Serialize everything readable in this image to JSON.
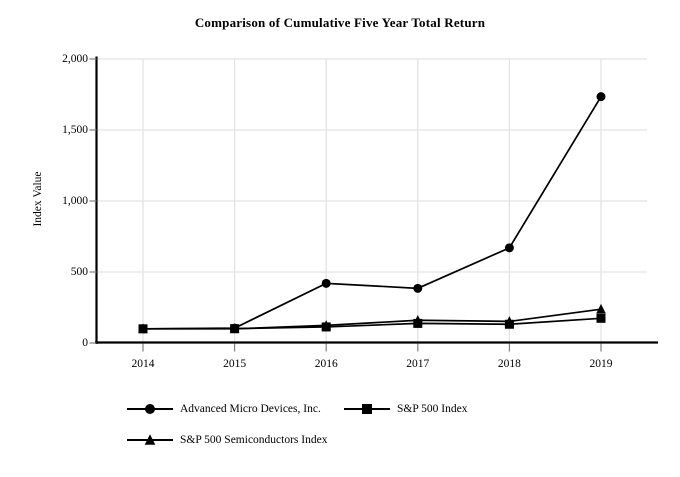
{
  "chart_data": {
    "type": "line",
    "title": "Comparison of Cumulative Five Year Total Return",
    "xlabel": "",
    "ylabel": "Index Value",
    "categories": [
      "2014",
      "2015",
      "2016",
      "2017",
      "2018",
      "2019"
    ],
    "ylim": [
      0,
      2000
    ],
    "yticks": [
      {
        "value": 0,
        "label": "0"
      },
      {
        "value": 500,
        "label": "500"
      },
      {
        "value": 1000,
        "label": "1,000"
      },
      {
        "value": 1500,
        "label": "1,500"
      },
      {
        "value": 2000,
        "label": "2,000"
      }
    ],
    "grid": true,
    "legend_position": "bottom-left",
    "series": [
      {
        "name": "Advanced Micro Devices, Inc.",
        "marker": "circle",
        "color": "#000000",
        "values": [
          100,
          105,
          420,
          385,
          670,
          1735
        ]
      },
      {
        "name": "S&P 500 Index",
        "marker": "square",
        "color": "#000000",
        "values": [
          100,
          101,
          113,
          138,
          132,
          174
        ]
      },
      {
        "name": "S&P 500 Semiconductors Index",
        "marker": "triangle",
        "color": "#000000",
        "values": [
          100,
          100,
          124,
          160,
          152,
          238
        ]
      }
    ],
    "colors": {
      "line": "#000000",
      "grid": "#e3e3e3",
      "axis": "#000000",
      "tick": "#808080",
      "background": "#ffffff"
    }
  }
}
